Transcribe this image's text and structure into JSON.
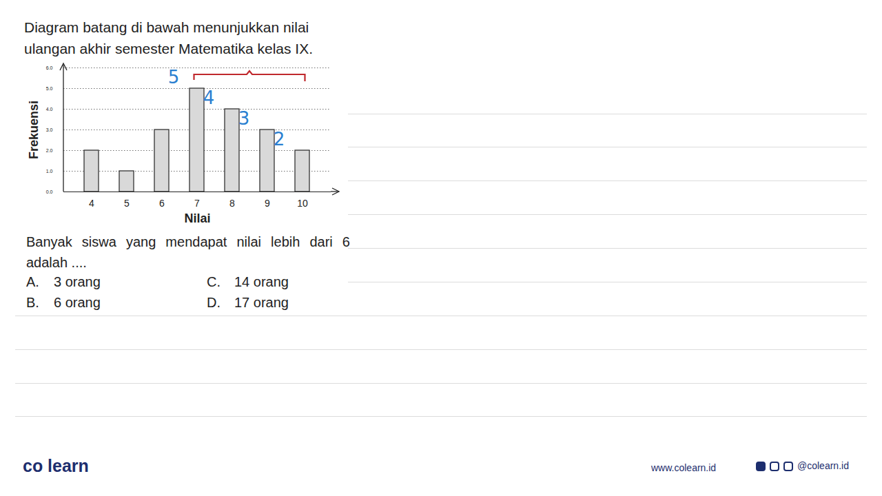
{
  "intro": "Diagram batang di bawah menunjukkan nilai ulangan akhir semester Matematika kelas IX.",
  "question": "Banyak siswa yang mendapat nilai lebih dari 6 adalah ....",
  "options": [
    {
      "letter": "A.",
      "text": "3 orang"
    },
    {
      "letter": "B.",
      "text": "6 orang"
    },
    {
      "letter": "C.",
      "text": "14 orang"
    },
    {
      "letter": "D.",
      "text": "17 orang"
    }
  ],
  "brand": "co learn",
  "website": "www.colearn.id",
  "social": "@colearn.id",
  "chart_data": {
    "type": "bar",
    "x_label": "Nilai",
    "y_label": "Frekuensi",
    "categories": [
      "4",
      "5",
      "6",
      "7",
      "8",
      "9",
      "10"
    ],
    "values": [
      2,
      1,
      3,
      5,
      4,
      3,
      2
    ],
    "color": "#d9d9d9",
    "ylim": [
      0,
      6
    ],
    "yticks": [
      0,
      1,
      2,
      3,
      4,
      5,
      6
    ],
    "grid": true,
    "annotations": [
      {
        "category": "7",
        "text": "5"
      },
      {
        "category": "8",
        "text": "4"
      },
      {
        "category": "9",
        "text": "3"
      },
      {
        "category": "10",
        "text": "2"
      }
    ]
  }
}
